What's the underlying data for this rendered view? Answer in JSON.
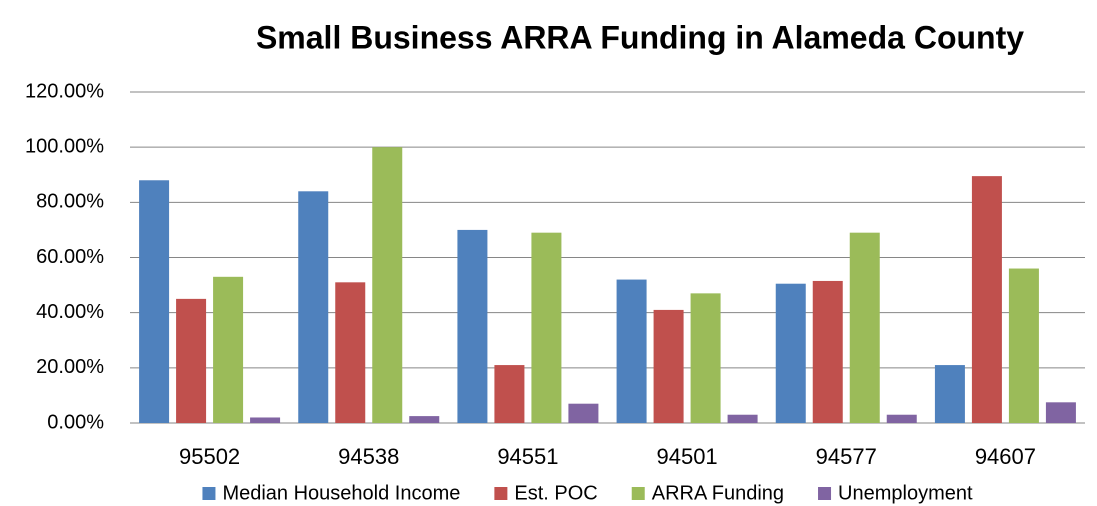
{
  "chart_data": {
    "type": "bar",
    "title": "Small Business ARRA Funding in Alameda County",
    "categories": [
      "95502",
      "94538",
      "94551",
      "94501",
      "94577",
      "94607"
    ],
    "series": [
      {
        "name": "Median Household Income",
        "color": "#4f81bd",
        "values": [
          88,
          84,
          70,
          52,
          50.5,
          21
        ]
      },
      {
        "name": "Est. POC",
        "color": "#c0504d",
        "values": [
          45,
          51,
          21,
          41,
          51.5,
          89.5
        ]
      },
      {
        "name": "ARRA Funding",
        "color": "#9bbb59",
        "values": [
          53,
          100,
          69,
          47,
          69,
          56
        ]
      },
      {
        "name": "Unemployment",
        "color": "#8064a2",
        "values": [
          2,
          2.5,
          7,
          3,
          3,
          7.5
        ]
      }
    ],
    "ylim": [
      0,
      120
    ],
    "yticks": [
      {
        "value": 0,
        "label": "0.00%"
      },
      {
        "value": 20,
        "label": "20.00%"
      },
      {
        "value": 40,
        "label": "40.00%"
      },
      {
        "value": 60,
        "label": "60.00%"
      },
      {
        "value": 80,
        "label": "80.00%"
      },
      {
        "value": 100,
        "label": "100.00%"
      },
      {
        "value": 120,
        "label": "120.00%"
      }
    ],
    "grid": true,
    "legend": "bottom"
  }
}
